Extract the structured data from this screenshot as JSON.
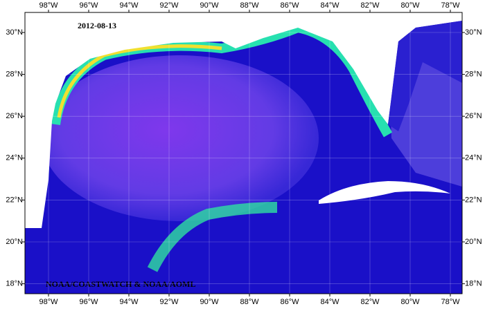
{
  "map": {
    "date": "2012-08-13",
    "credit": "NOAA/COASTWATCH & NOAA/AOML",
    "lon_ticks": [
      {
        "value": -98,
        "label": "98°W"
      },
      {
        "value": -96,
        "label": "96°W"
      },
      {
        "value": -94,
        "label": "94°W"
      },
      {
        "value": -92,
        "label": "92°W"
      },
      {
        "value": -90,
        "label": "90°W"
      },
      {
        "value": -88,
        "label": "88°W"
      },
      {
        "value": -86,
        "label": "86°W"
      },
      {
        "value": -84,
        "label": "84°W"
      },
      {
        "value": -82,
        "label": "82°W"
      },
      {
        "value": -80,
        "label": "80°W"
      },
      {
        "value": -78,
        "label": "78°W"
      }
    ],
    "lat_ticks": [
      {
        "value": 18,
        "label": "18°N"
      },
      {
        "value": 20,
        "label": "20°N"
      },
      {
        "value": 22,
        "label": "22°N"
      },
      {
        "value": 24,
        "label": "24°N"
      },
      {
        "value": 26,
        "label": "26°N"
      },
      {
        "value": 28,
        "label": "28°N"
      },
      {
        "value": 30,
        "label": "30°N"
      }
    ]
  }
}
